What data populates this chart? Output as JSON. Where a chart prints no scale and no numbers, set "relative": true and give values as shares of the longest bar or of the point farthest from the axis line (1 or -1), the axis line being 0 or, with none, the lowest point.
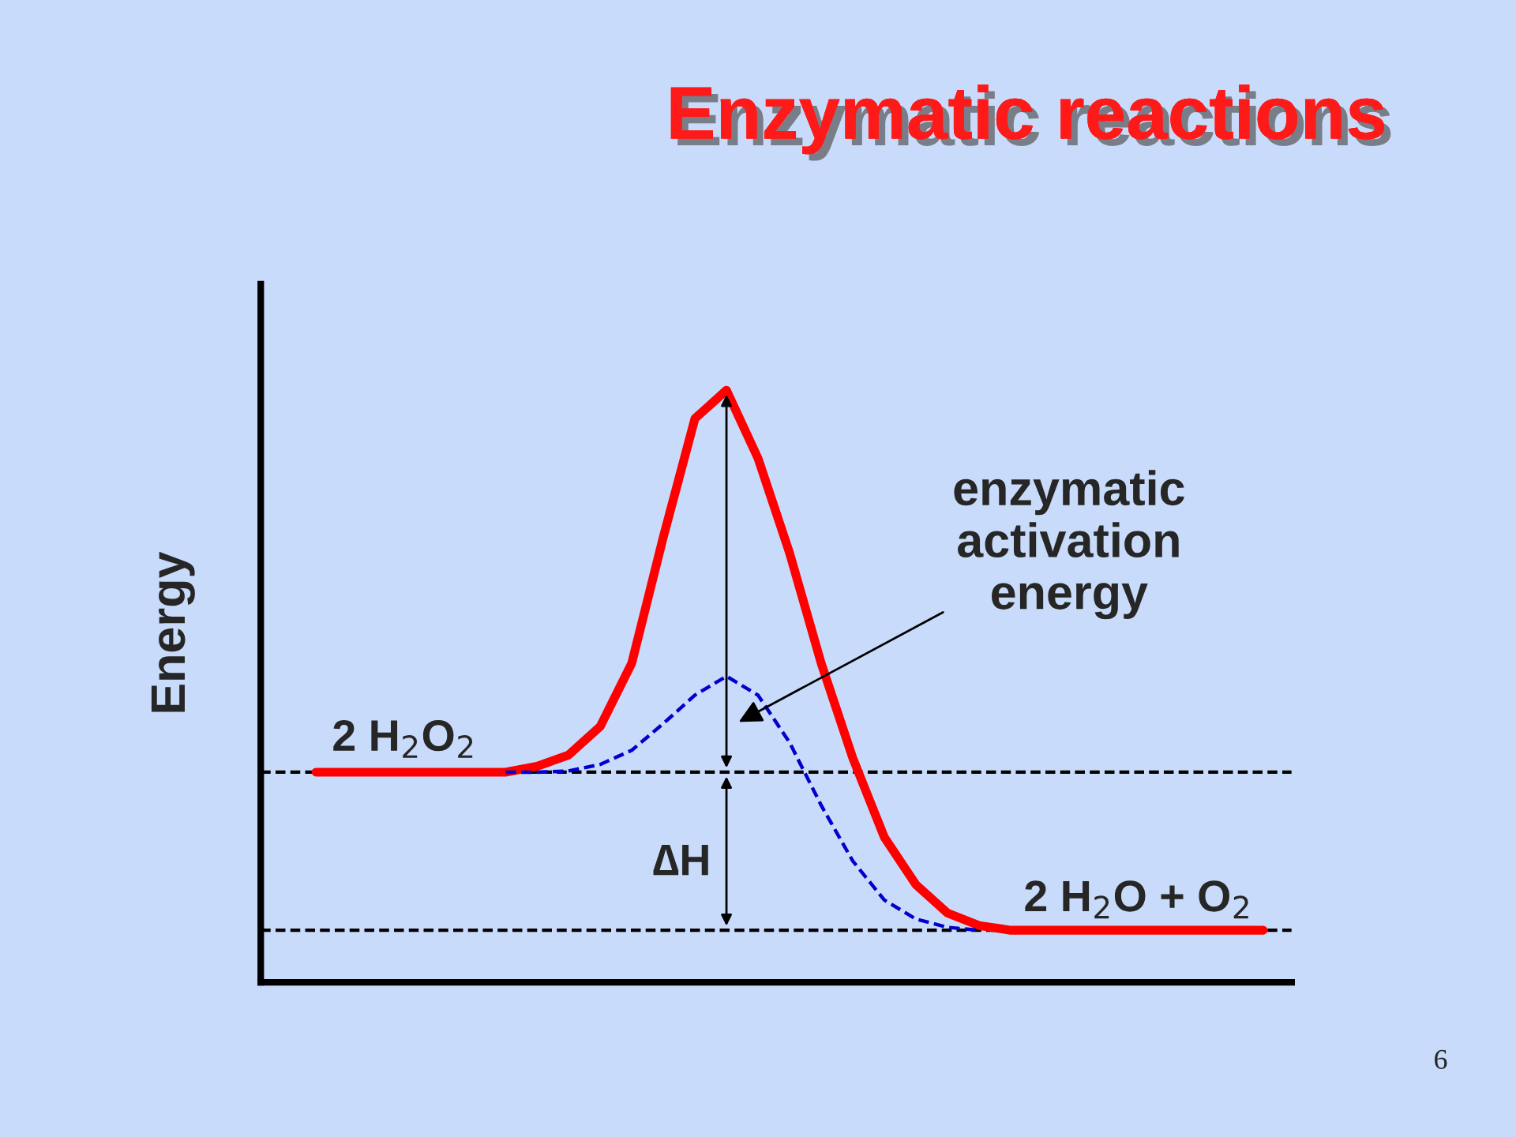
{
  "chart_data": {
    "type": "line",
    "title": "Enzymatic reactions",
    "ylabel": "Energy",
    "relative": true,
    "legend": false,
    "categories": [
      null,
      null,
      null,
      null,
      null,
      null,
      null,
      null,
      null,
      null,
      null,
      null,
      null,
      null,
      null,
      null,
      null,
      null,
      null,
      null,
      null,
      null,
      null,
      null,
      null,
      null,
      null,
      null,
      null,
      null,
      null
    ],
    "series": [
      {
        "color": "#ff0000",
        "line_style": "solid",
        "values": [
          0.355,
          0.355,
          0.355,
          0.355,
          0.355,
          0.355,
          0.355,
          0.365,
          0.384,
          0.432,
          0.539,
          0.752,
          0.952,
          1.0,
          0.885,
          0.725,
          0.539,
          0.379,
          0.245,
          0.165,
          0.117,
          0.096,
          0.088,
          0.088,
          0.088,
          0.088,
          0.088,
          0.088,
          0.088,
          0.088,
          0.088
        ]
      },
      {
        "color": "#0000cc",
        "line_style": "dashed",
        "values": [
          null,
          null,
          null,
          null,
          null,
          null,
          0.355,
          0.355,
          0.357,
          0.368,
          0.392,
          0.437,
          0.485,
          0.517,
          0.485,
          0.405,
          0.299,
          0.205,
          0.139,
          0.107,
          0.093,
          0.088,
          null,
          null,
          null,
          null,
          null,
          null,
          null,
          null,
          null
        ]
      }
    ],
    "ref_lines": [
      {
        "axis": "y",
        "value": 0.355,
        "color": "#000000",
        "line_style": "dashed"
      },
      {
        "axis": "y",
        "value": 0.088,
        "color": "#000000",
        "line_style": "dashed"
      }
    ],
    "annotations": [
      "2 H$_{2}$O$_{2}$",
      "2 H$_{2}$O + O$_{2}$",
      "∆H",
      "enzymatic\nactivation\nenergy",
      "6"
    ]
  }
}
